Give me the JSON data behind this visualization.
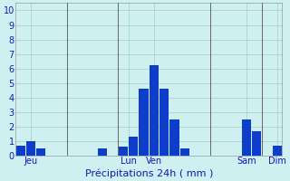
{
  "values": [
    0.7,
    1.0,
    0.5,
    0.0,
    0.0,
    0.0,
    0.0,
    0.0,
    0.5,
    0.0,
    0.6,
    1.3,
    4.6,
    6.2,
    4.6,
    2.5,
    0.5,
    0.0,
    0.0,
    0.0,
    0.0,
    0.0,
    2.5,
    1.7,
    0.0,
    0.7
  ],
  "bar_color": "#0e3dcc",
  "background_color": "#cff0f0",
  "grid_color": "#a8c8c8",
  "xlabel": "Précipitations 24h ( mm )",
  "ylabel_ticks": [
    0,
    1,
    2,
    3,
    4,
    5,
    6,
    7,
    8,
    9,
    10
  ],
  "ylim": [
    0,
    10.5
  ],
  "day_labels": [
    "Jeu",
    "Lun",
    "Ven",
    "Sam",
    "Dim"
  ],
  "day_tick_positions": [
    1,
    10.5,
    13,
    22,
    25
  ],
  "vline_positions": [
    4.5,
    9.5,
    18.5,
    23.5
  ],
  "xlabel_fontsize": 8,
  "tick_fontsize": 7,
  "label_color": "#1515bb",
  "figsize": [
    3.2,
    2.0
  ],
  "dpi": 100
}
